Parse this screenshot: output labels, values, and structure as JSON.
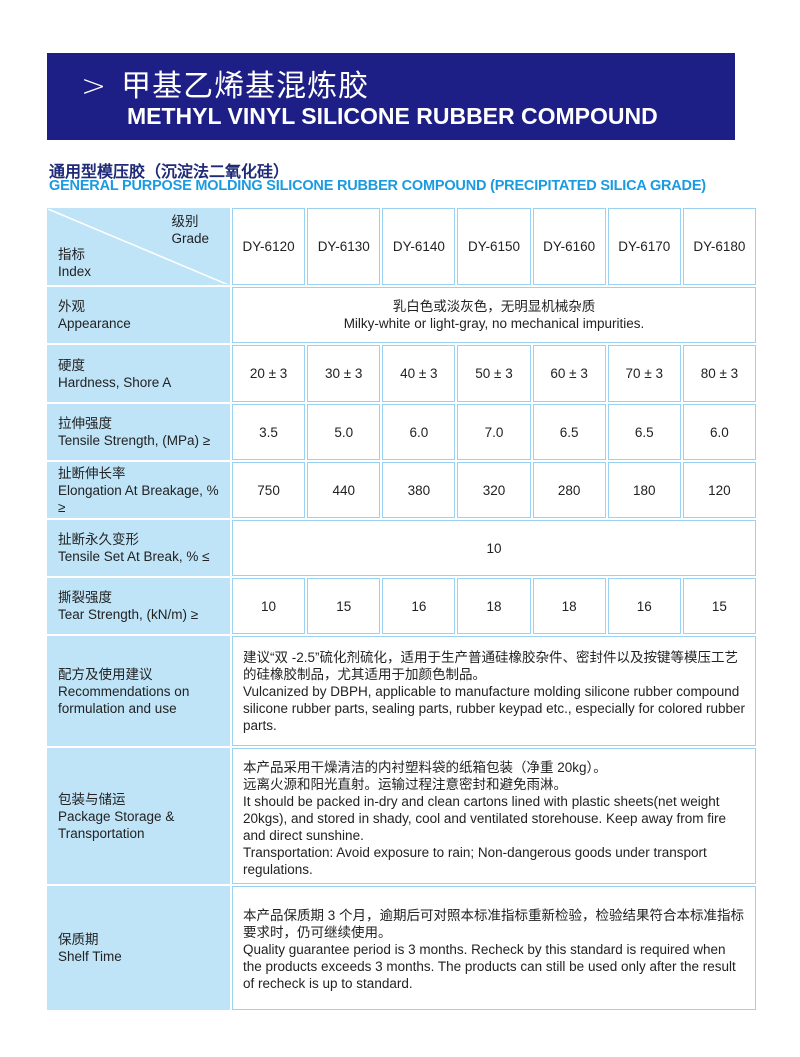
{
  "header": {
    "arrow": ">",
    "title_cn": "甲基乙烯基混炼胶",
    "title_en": "METHYL VINYL SILICONE RUBBER COMPOUND"
  },
  "section": {
    "title_cn": "通用型模压胶（沉淀法二氧化硅）",
    "title_en": "GENERAL PURPOSE MOLDING SILICONE RUBBER COMPOUND (PRECIPITATED SILICA GRADE)"
  },
  "table": {
    "corner": {
      "grade_cn": "级别",
      "grade_en": "Grade",
      "index_cn": "指标",
      "index_en": "Index"
    },
    "grades": [
      "DY-6120",
      "DY-6130",
      "DY-6140",
      "DY-6150",
      "DY-6160",
      "DY-6170",
      "DY-6180"
    ],
    "appearance": {
      "label_cn": "外观",
      "label_en": "Appearance",
      "value_cn": "乳白色或淡灰色，无明显机械杂质",
      "value_en": "Milky-white or light-gray, no mechanical impurities."
    },
    "hardness": {
      "label_cn": "硬度",
      "label_en": "Hardness, Shore A",
      "values": [
        "20 ± 3",
        "30 ± 3",
        "40 ± 3",
        "50 ± 3",
        "60 ± 3",
        "70 ± 3",
        "80 ± 3"
      ]
    },
    "tensile": {
      "label_cn": "拉伸强度",
      "label_en": "Tensile Strength, (MPa) ≥",
      "values": [
        "3.5",
        "5.0",
        "6.0",
        "7.0",
        "6.5",
        "6.5",
        "6.0"
      ]
    },
    "elongation": {
      "label_cn": "扯断伸长率",
      "label_en": "Elongation At Breakage, % ≥",
      "values": [
        "750",
        "440",
        "380",
        "320",
        "280",
        "180",
        "120"
      ]
    },
    "tensile_set": {
      "label_cn": "扯断永久变形",
      "label_en": "Tensile Set At Break, % ≤",
      "value": "10"
    },
    "tear": {
      "label_cn": "撕裂强度",
      "label_en": "Tear Strength, (kN/m) ≥",
      "values": [
        "10",
        "15",
        "16",
        "18",
        "18",
        "16",
        "15"
      ]
    },
    "recommendations": {
      "label_cn": "配方及使用建议",
      "label_en": "Recommendations on formulation and use",
      "text_cn": "建议“双 -2.5”硫化剂硫化，适用于生产普通硅橡胶杂件、密封件以及按键等模压工艺的硅橡胶制品，尤其适用于加颜色制品。",
      "text_en": "Vulcanized by DBPH, applicable to manufacture molding silicone rubber compound silicone rubber parts, sealing parts, rubber keypad etc., especially for colored rubber parts."
    },
    "package": {
      "label_cn": "包装与储运",
      "label_en": "Package Storage & Transportation",
      "text_cn1": "本产品采用干燥清洁的内衬塑料袋的纸箱包装（净重 20kg）。",
      "text_cn2": "远离火源和阳光直射。运输过程注意密封和避免雨淋。",
      "text_en1": "It should be packed in-dry and clean cartons lined with plastic sheets(net weight 20kgs), and stored in shady, cool and ventilated storehouse. Keep away from fire and direct sunshine.",
      "text_en2": "Transportation: Avoid exposure to rain; Non-dangerous goods under transport regulations."
    },
    "shelf": {
      "label_cn": "保质期",
      "label_en": "Shelf Time",
      "text_cn": "本产品保质期 3 个月，逾期后可对照本标准指标重新检验，检验结果符合本标准指标要求时，仍可继续使用。",
      "text_en": "Quality guarantee period is 3 months. Recheck by this standard is required when the products exceeds 3 months. The products can still be used only after the result of recheck is up to standard."
    }
  }
}
